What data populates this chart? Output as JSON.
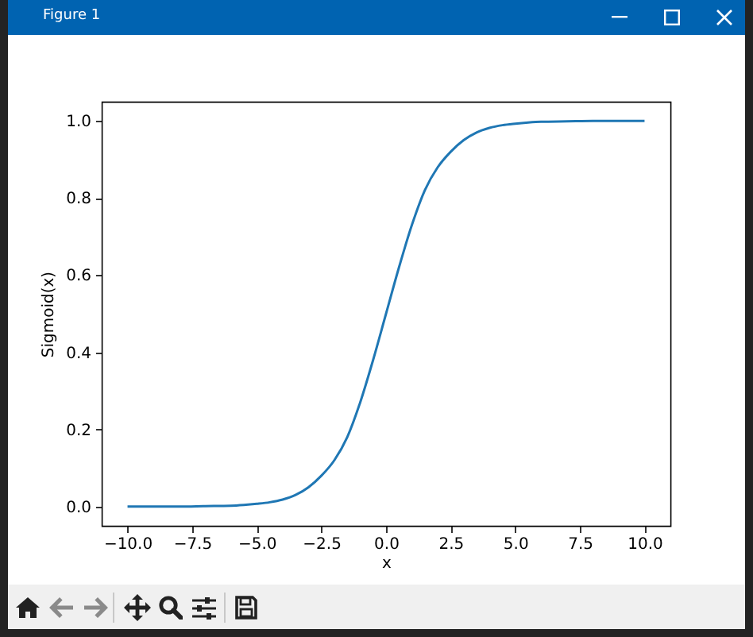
{
  "chart_data": {
    "type": "line",
    "title": "Figure 1",
    "xlabel": "x",
    "ylabel": "Sigmoid(x)",
    "x": [
      -10,
      -8,
      -7,
      -6,
      -5.5,
      -5,
      -4.5,
      -4,
      -3.5,
      -3,
      -2.5,
      -2,
      -1.5,
      -1,
      -0.5,
      0,
      0.5,
      1,
      1.5,
      2,
      2.5,
      3,
      3.5,
      4,
      4.5,
      5,
      5.5,
      6,
      7,
      8,
      10
    ],
    "series": [
      {
        "color": "#1f77b4",
        "values": [
          0.0,
          0.0,
          0.001,
          0.002,
          0.004,
          0.007,
          0.011,
          0.018,
          0.03,
          0.05,
          0.08,
          0.12,
          0.18,
          0.27,
          0.38,
          0.5,
          0.62,
          0.73,
          0.82,
          0.88,
          0.92,
          0.95,
          0.97,
          0.982,
          0.989,
          0.993,
          0.996,
          0.998,
          0.999,
          1.0,
          1.0
        ]
      }
    ],
    "xlim": [
      -11,
      11
    ],
    "xticks": [
      {
        "value": -10,
        "label": "−10.0"
      },
      {
        "value": -7.5,
        "label": "−7.5"
      },
      {
        "value": -5,
        "label": "−5.0"
      },
      {
        "value": -2.5,
        "label": "−2.5"
      },
      {
        "value": 0,
        "label": "0.0"
      },
      2.5,
      {
        "value": 5,
        "label": "5.0"
      },
      7.5,
      {
        "value": 10,
        "label": "10.0"
      }
    ],
    "ylim": [
      -0.05,
      1.05
    ],
    "yticks": [
      {
        "value": 0,
        "label": "0.0"
      },
      0.2,
      0.4,
      0.6,
      0.8,
      {
        "value": 1,
        "label": "1.0"
      }
    ]
  }
}
